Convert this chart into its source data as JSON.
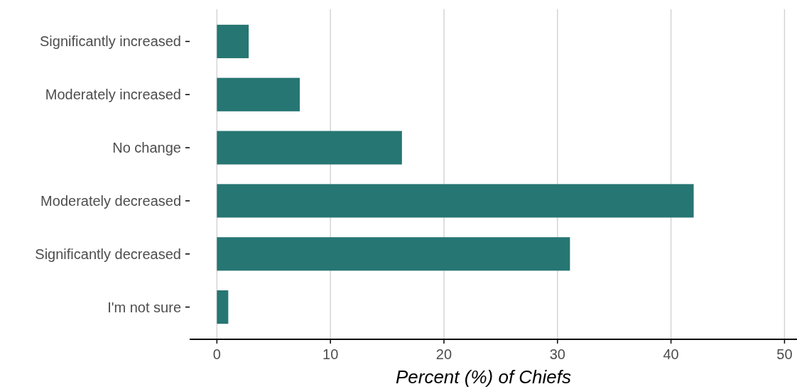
{
  "chart_data": {
    "type": "bar",
    "orientation": "horizontal",
    "xlabel": "Percent (%) of Chiefs",
    "categories": [
      "Significantly increased",
      "Moderately increased",
      "No change",
      "Moderately decreased",
      "Significantly decreased",
      "I'm not sure"
    ],
    "values": [
      2.8,
      7.3,
      16.3,
      42.0,
      31.1,
      1.0
    ],
    "color": "#267673",
    "xlim": [
      -2.4,
      51.1
    ],
    "xticks": [
      0,
      10,
      20,
      30,
      40,
      50
    ],
    "grid": "x"
  }
}
